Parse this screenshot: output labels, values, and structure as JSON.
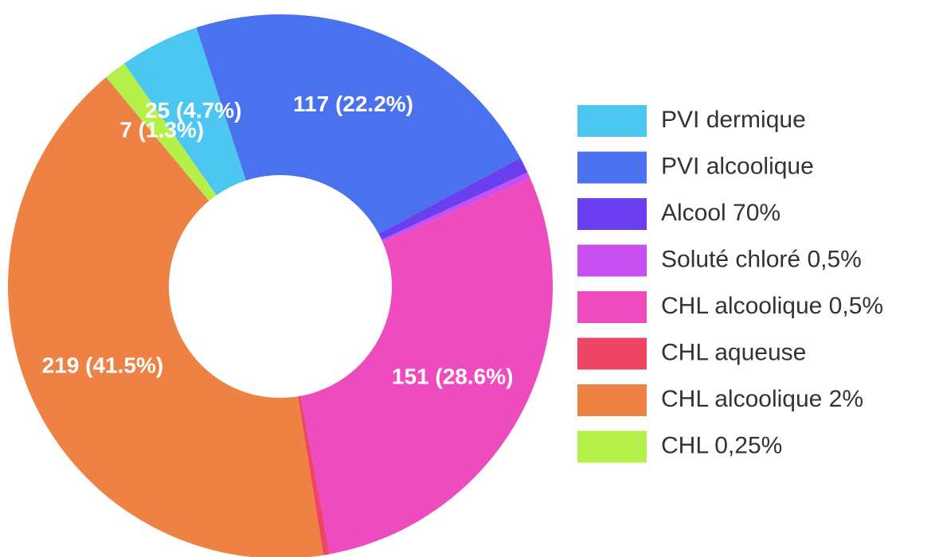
{
  "chart_data": {
    "type": "donut",
    "categories": [
      "PVI dermique",
      "PVI alcoolique",
      "Alcool 70%",
      "Soluté chloré 0,5%",
      "CHL alcoolique 0,5%",
      "CHL aqueuse",
      "CHL alcoolique 2%",
      "CHL 0,25%"
    ],
    "values": [
      25,
      117,
      5,
      2,
      151,
      2,
      219,
      7
    ],
    "value_labels": [
      "25 (4.7%)",
      "117 (22.2%)",
      null,
      null,
      "151 (28.6%)",
      null,
      "219 (41.5%)",
      "7 (1.3%)"
    ],
    "colors": [
      "#4cc8f0",
      "#4a72ee",
      "#6a3ff0",
      "#c94ff0",
      "#ee4bbf",
      "#ee4466",
      "#ee8144",
      "#b5ef4a"
    ],
    "legend": "right"
  }
}
